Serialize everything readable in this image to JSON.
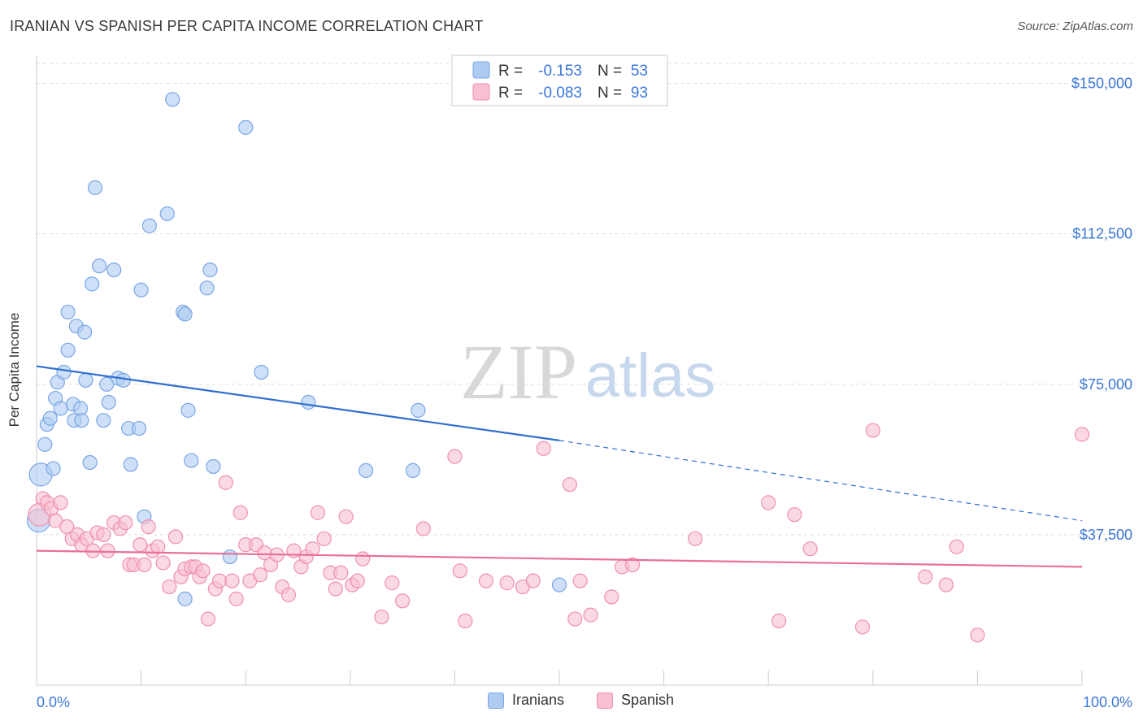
{
  "title": "IRANIAN VS SPANISH PER CAPITA INCOME CORRELATION CHART",
  "source": "Source: ZipAtlas.com",
  "watermark": {
    "zip": "ZIP",
    "atlas": "atlas"
  },
  "colors": {
    "iranians_fill": "#aecbf2",
    "iranians_stroke": "#7aa6e6",
    "iranians_line": "#2f6fd0",
    "spanish_fill": "#f8bfd1",
    "spanish_stroke": "#ef8fb0",
    "spanish_line": "#e8709a",
    "axis_label": "#3c78d8",
    "grid": "#dddddd"
  },
  "legend_top": {
    "rows": [
      {
        "r_label": "R =",
        "r_value": "-0.153",
        "n_label": "N =",
        "n_value": "53"
      },
      {
        "r_label": "R =",
        "r_value": "-0.083",
        "n_label": "N =",
        "n_value": "93"
      }
    ]
  },
  "legend_bottom": [
    {
      "label": "Iranians"
    },
    {
      "label": "Spanish"
    }
  ],
  "chart_data": {
    "type": "scatter",
    "title": "IRANIAN VS SPANISH PER CAPITA INCOME CORRELATION CHART",
    "xlabel": "",
    "ylabel": "Per Capita Income",
    "xlim": [
      0,
      100
    ],
    "ylim": [
      0,
      157000
    ],
    "x_tick_labels": [
      "0.0%",
      "100.0%"
    ],
    "y_ticks": [
      37500,
      75000,
      112500,
      150000
    ],
    "y_tick_labels": [
      "$37,500",
      "$75,000",
      "$112,500",
      "$150,000"
    ],
    "grid": true,
    "legend_placement": "top-center",
    "series": [
      {
        "name": "Iranians",
        "r": -0.153,
        "n": 53,
        "trend": {
          "x0": 0,
          "y0": 79500,
          "x1": 50,
          "y1": 61000,
          "dashed_to_x": 100,
          "dashed_to_y": 41000
        },
        "points": [
          [
            0.2,
            41000
          ],
          [
            0.4,
            52500
          ],
          [
            0.8,
            60000
          ],
          [
            1.0,
            65000
          ],
          [
            1.3,
            66500
          ],
          [
            1.6,
            54000
          ],
          [
            1.8,
            71500
          ],
          [
            2.0,
            75500
          ],
          [
            2.3,
            69000
          ],
          [
            2.6,
            78000
          ],
          [
            3.0,
            83500
          ],
          [
            3.0,
            93000
          ],
          [
            3.5,
            70000
          ],
          [
            3.6,
            66000
          ],
          [
            3.8,
            89500
          ],
          [
            4.2,
            69000
          ],
          [
            4.3,
            66000
          ],
          [
            4.6,
            88000
          ],
          [
            4.7,
            76000
          ],
          [
            5.1,
            55500
          ],
          [
            5.3,
            100000
          ],
          [
            5.6,
            124000
          ],
          [
            6.0,
            104500
          ],
          [
            6.4,
            66000
          ],
          [
            6.7,
            75000
          ],
          [
            6.9,
            70500
          ],
          [
            7.4,
            103500
          ],
          [
            7.8,
            76500
          ],
          [
            8.3,
            76000
          ],
          [
            8.8,
            64000
          ],
          [
            9.0,
            55000
          ],
          [
            9.8,
            64000
          ],
          [
            10.0,
            98500
          ],
          [
            10.3,
            42000
          ],
          [
            10.8,
            114500
          ],
          [
            12.5,
            117500
          ],
          [
            13.0,
            146000
          ],
          [
            14.0,
            93000
          ],
          [
            14.2,
            92500
          ],
          [
            14.5,
            68500
          ],
          [
            14.8,
            56000
          ],
          [
            16.3,
            99000
          ],
          [
            16.6,
            103500
          ],
          [
            16.9,
            54500
          ],
          [
            18.5,
            32000
          ],
          [
            20.0,
            139000
          ],
          [
            21.5,
            78000
          ],
          [
            26.0,
            70500
          ],
          [
            31.5,
            53500
          ],
          [
            36.0,
            53500
          ],
          [
            36.5,
            68500
          ],
          [
            50.0,
            25000
          ],
          [
            14.2,
            21500
          ]
        ]
      },
      {
        "name": "Spanish",
        "r": -0.083,
        "n": 93,
        "trend": {
          "x0": 0,
          "y0": 33500,
          "x1": 100,
          "y1": 29500
        },
        "points": [
          [
            0.3,
            42500
          ],
          [
            0.6,
            46500
          ],
          [
            1.0,
            45500
          ],
          [
            1.4,
            44000
          ],
          [
            1.8,
            41000
          ],
          [
            2.3,
            45500
          ],
          [
            2.9,
            39500
          ],
          [
            3.4,
            36500
          ],
          [
            3.9,
            37500
          ],
          [
            4.3,
            35000
          ],
          [
            4.8,
            36500
          ],
          [
            5.4,
            33500
          ],
          [
            5.8,
            38000
          ],
          [
            6.4,
            37500
          ],
          [
            6.8,
            33500
          ],
          [
            7.4,
            40500
          ],
          [
            8.0,
            39000
          ],
          [
            8.5,
            40500
          ],
          [
            8.9,
            30000
          ],
          [
            9.3,
            30000
          ],
          [
            9.9,
            35000
          ],
          [
            10.3,
            30000
          ],
          [
            10.7,
            39500
          ],
          [
            11.1,
            33500
          ],
          [
            11.6,
            34500
          ],
          [
            12.1,
            30500
          ],
          [
            12.7,
            24500
          ],
          [
            13.3,
            37000
          ],
          [
            13.8,
            27000
          ],
          [
            14.2,
            29000
          ],
          [
            14.8,
            29500
          ],
          [
            15.2,
            29500
          ],
          [
            15.6,
            27000
          ],
          [
            15.9,
            28500
          ],
          [
            16.4,
            16500
          ],
          [
            17.1,
            24000
          ],
          [
            17.5,
            26000
          ],
          [
            18.1,
            50500
          ],
          [
            18.7,
            26000
          ],
          [
            19.1,
            21500
          ],
          [
            19.5,
            43000
          ],
          [
            20.0,
            35000
          ],
          [
            20.4,
            26000
          ],
          [
            21.0,
            35000
          ],
          [
            21.4,
            27500
          ],
          [
            21.8,
            33000
          ],
          [
            22.4,
            30000
          ],
          [
            23.0,
            32500
          ],
          [
            23.5,
            24500
          ],
          [
            24.1,
            22500
          ],
          [
            24.6,
            33500
          ],
          [
            25.3,
            29500
          ],
          [
            25.8,
            32000
          ],
          [
            26.4,
            34000
          ],
          [
            26.9,
            43000
          ],
          [
            27.5,
            36500
          ],
          [
            28.1,
            28000
          ],
          [
            28.6,
            24000
          ],
          [
            29.1,
            28000
          ],
          [
            29.6,
            42000
          ],
          [
            30.2,
            25000
          ],
          [
            30.7,
            26000
          ],
          [
            31.2,
            31500
          ],
          [
            33.0,
            17000
          ],
          [
            34.0,
            25500
          ],
          [
            35.0,
            21000
          ],
          [
            37.0,
            39000
          ],
          [
            40.0,
            57000
          ],
          [
            40.5,
            28500
          ],
          [
            41.0,
            16000
          ],
          [
            43.0,
            26000
          ],
          [
            45.0,
            25500
          ],
          [
            46.5,
            24500
          ],
          [
            47.5,
            26000
          ],
          [
            48.5,
            59000
          ],
          [
            51.0,
            50000
          ],
          [
            51.5,
            16500
          ],
          [
            52.0,
            26000
          ],
          [
            53.0,
            17500
          ],
          [
            55.0,
            22000
          ],
          [
            56.0,
            29500
          ],
          [
            57.0,
            30000
          ],
          [
            63.0,
            36500
          ],
          [
            70.0,
            45500
          ],
          [
            71.0,
            16000
          ],
          [
            72.5,
            42500
          ],
          [
            74.0,
            34000
          ],
          [
            79.0,
            14500
          ],
          [
            80.0,
            63500
          ],
          [
            85.0,
            27000
          ],
          [
            87.0,
            25000
          ],
          [
            88.0,
            34500
          ],
          [
            90.0,
            12500
          ],
          [
            100.0,
            62500
          ]
        ]
      }
    ]
  }
}
